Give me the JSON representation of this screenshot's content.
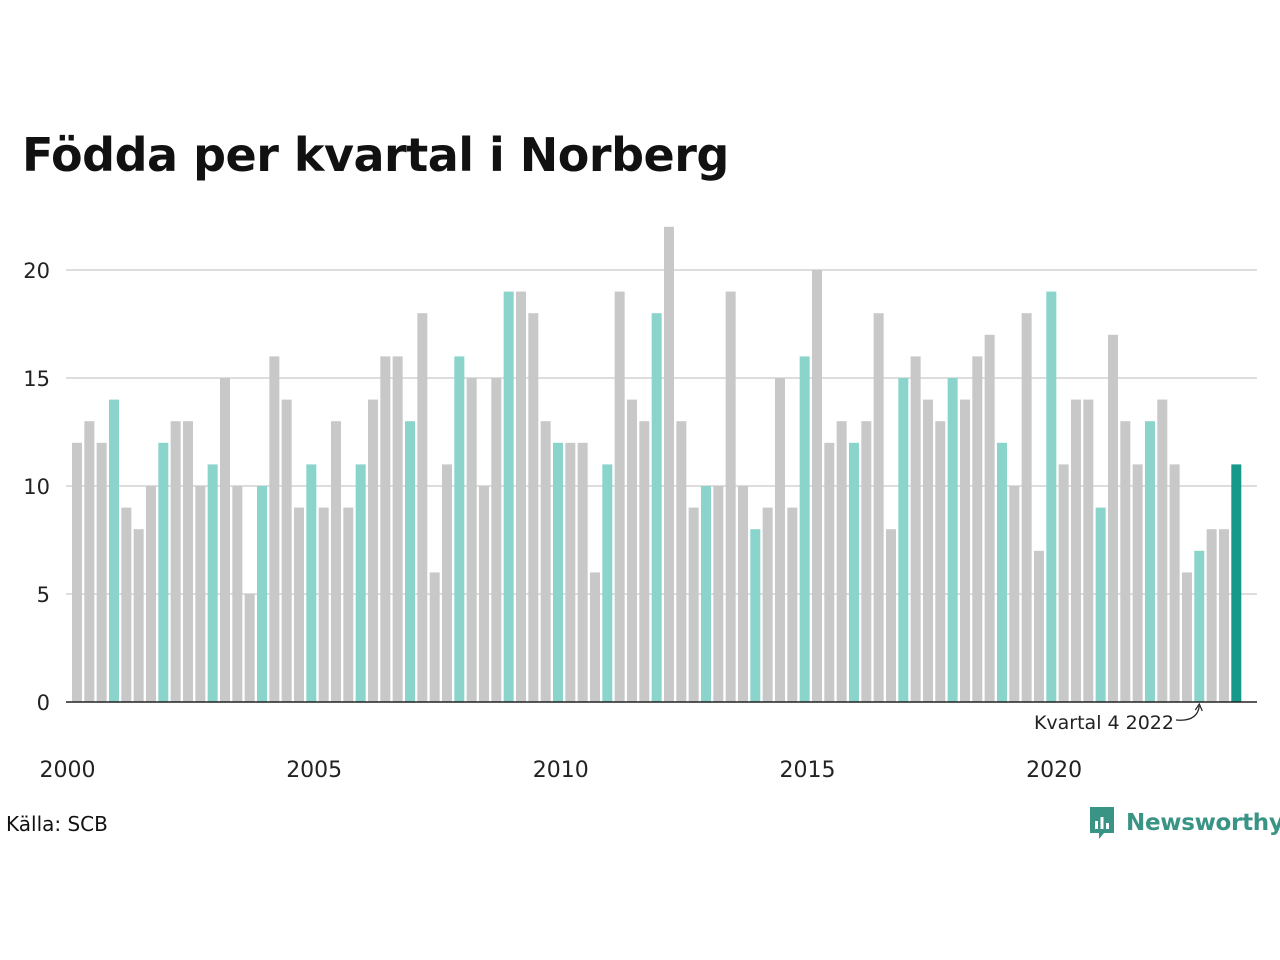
{
  "title": "Födda per kvartal i Norberg",
  "source": "Källa: SCB",
  "brand": "Newsworthy",
  "colors": {
    "bar_default": "#c8c8c8",
    "bar_q1": "#8ad4cb",
    "bar_latest": "#16998a",
    "grid": "#dddddd",
    "axis": "#222222",
    "brand": "#3a9486"
  },
  "chart_data": {
    "type": "bar",
    "title": "Födda per kvartal i Norberg",
    "xlabel": "",
    "ylabel": "",
    "ylim": [
      0,
      22
    ],
    "y_ticks": [
      0,
      5,
      10,
      15,
      20
    ],
    "x_ticks": [
      "2000",
      "2005",
      "2010",
      "2015",
      "2020"
    ],
    "grid": true,
    "highlight_rule": "first quarter of each year in light teal; latest quarter in dark teal",
    "annotation": {
      "text": "Kvartal 4 2022",
      "target_index": 91
    },
    "series": [
      {
        "values": [
          12,
          13,
          12,
          14,
          9,
          8,
          10,
          12,
          13,
          13,
          10,
          11,
          15,
          10,
          5,
          10,
          16,
          14,
          9,
          11,
          9,
          13,
          9,
          11,
          14,
          16,
          16,
          13,
          18,
          6,
          11,
          16,
          15,
          10,
          15,
          19,
          19,
          18,
          13,
          12,
          12,
          12,
          6,
          11,
          19,
          14,
          13,
          18,
          22,
          13,
          9,
          10,
          10,
          19,
          10,
          8,
          9,
          15,
          9,
          16,
          20,
          12,
          13,
          12,
          13,
          18,
          8,
          15,
          16,
          14,
          13,
          15,
          14,
          16,
          17,
          12,
          10,
          18,
          7,
          19,
          11,
          14,
          14,
          9,
          17,
          13,
          11,
          13,
          14,
          11,
          6,
          7,
          8,
          8,
          11
        ]
      }
    ]
  }
}
